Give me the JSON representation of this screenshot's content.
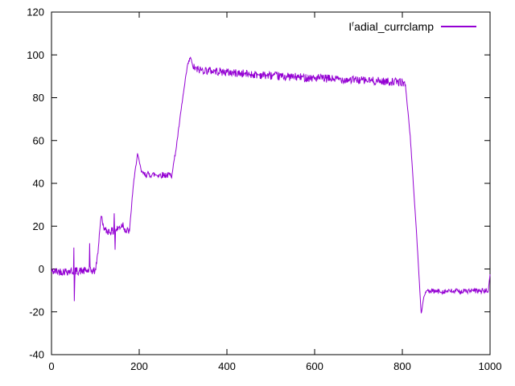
{
  "legend": {
    "prefix": "I",
    "superscript": "r",
    "rest": "adial_currclamp"
  },
  "chart_data": {
    "type": "line",
    "title": "",
    "xlabel": "",
    "ylabel": "",
    "xlim": [
      0,
      1000
    ],
    "ylim": [
      -40,
      120
    ],
    "x_ticks": [
      0,
      200,
      400,
      600,
      800,
      1000
    ],
    "y_ticks": [
      -40,
      -20,
      0,
      20,
      40,
      60,
      80,
      100,
      120
    ],
    "grid": false,
    "legend_position": "top-right",
    "background": "#ffffff",
    "axis_color": "#000000",
    "series": [
      {
        "name": "Iʳadial_currclamp",
        "color": "#9400d3",
        "anchors": [
          [
            0,
            -1.2
          ],
          [
            48,
            -1
          ],
          [
            100,
            -0.8
          ],
          [
            106,
            8
          ],
          [
            111,
            21
          ],
          [
            114,
            25
          ],
          [
            118,
            20
          ],
          [
            123,
            17.8
          ],
          [
            144,
            17.5
          ],
          [
            152,
            19
          ],
          [
            163,
            21
          ],
          [
            170,
            17.5
          ],
          [
            178,
            18
          ],
          [
            186,
            38
          ],
          [
            196,
            54
          ],
          [
            200,
            50
          ],
          [
            205,
            45.5
          ],
          [
            212,
            44.2
          ],
          [
            245,
            44
          ],
          [
            274,
            43.8
          ],
          [
            284,
            56
          ],
          [
            298,
            78
          ],
          [
            310,
            95
          ],
          [
            317,
            99
          ],
          [
            322,
            94.5
          ],
          [
            330,
            93.2
          ],
          [
            420,
            91.5
          ],
          [
            520,
            90
          ],
          [
            620,
            89
          ],
          [
            720,
            88
          ],
          [
            800,
            87.2
          ],
          [
            807,
            86
          ],
          [
            818,
            62
          ],
          [
            832,
            18
          ],
          [
            843,
            -21
          ],
          [
            849,
            -13
          ],
          [
            854,
            -10.5
          ],
          [
            920,
            -10.4
          ],
          [
            996,
            -10.2
          ],
          [
            1000,
            -2.5
          ]
        ],
        "noise_regions": [
          [
            0,
            100,
            1.9
          ],
          [
            100,
            122,
            1.2
          ],
          [
            123,
            177,
            1.9
          ],
          [
            177,
            211,
            0.7
          ],
          [
            211,
            275,
            1.5
          ],
          [
            275,
            324,
            0.7
          ],
          [
            324,
            806,
            1.9
          ],
          [
            806,
            845,
            0.4
          ],
          [
            845,
            855,
            0.5
          ],
          [
            855,
            996,
            1.2
          ],
          [
            996,
            1000,
            0.3
          ]
        ],
        "spikes": [
          [
            51,
            10
          ],
          [
            52,
            -15
          ],
          [
            53,
            -6
          ],
          [
            87,
            12
          ],
          [
            143,
            26
          ],
          [
            145,
            9
          ]
        ]
      }
    ]
  }
}
